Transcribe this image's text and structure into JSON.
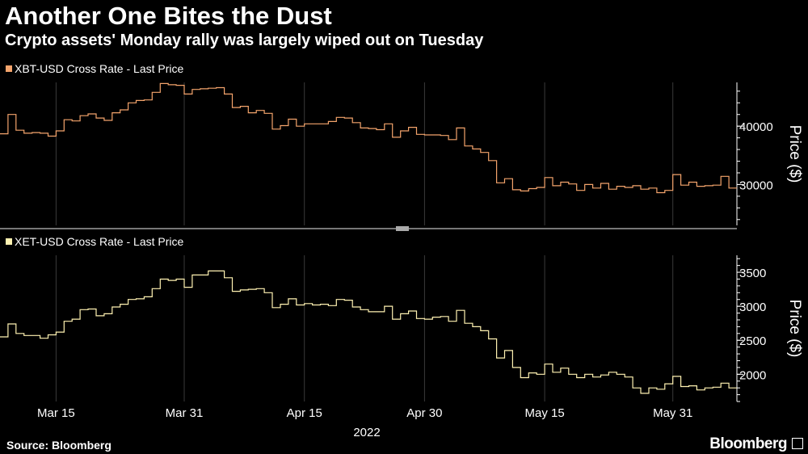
{
  "header": {
    "title": "Another One Bites the Dust",
    "subtitle": "Crypto assets' Monday rally was largely wiped out on Tuesday"
  },
  "footer": {
    "source": "Source: Bloomberg",
    "brand": "Bloomberg"
  },
  "colors": {
    "background": "#000000",
    "btc": "#f4a46c",
    "eth": "#fff2b2",
    "grid": "#3a3a3a",
    "axis": "#ffffff"
  },
  "chart_data": [
    {
      "type": "line",
      "legend_position": "top-left",
      "legend": "XBT-USD Cross Rate - Last Price",
      "ylabel": "Price ($)",
      "ylim": [
        23000,
        47500
      ],
      "yticks": [
        30000,
        40000
      ],
      "xlim": [
        "2022-03-08",
        "2022-06-08"
      ],
      "xticks": [
        {
          "date": "2022-03-15",
          "label": "Mar 15"
        },
        {
          "date": "2022-03-31",
          "label": "Mar 31"
        },
        {
          "date": "2022-04-15",
          "label": "Apr 15"
        },
        {
          "date": "2022-04-30",
          "label": "Apr 30"
        },
        {
          "date": "2022-05-15",
          "label": "May 15"
        },
        {
          "date": "2022-05-31",
          "label": "May 31"
        }
      ],
      "grid": "vertical",
      "series": [
        {
          "x": [
            "2022-03-08",
            "2022-03-09",
            "2022-03-10",
            "2022-03-11",
            "2022-03-12",
            "2022-03-13",
            "2022-03-14",
            "2022-03-15",
            "2022-03-16",
            "2022-03-17",
            "2022-03-18",
            "2022-03-19",
            "2022-03-20",
            "2022-03-21",
            "2022-03-22",
            "2022-03-23",
            "2022-03-24",
            "2022-03-25",
            "2022-03-26",
            "2022-03-27",
            "2022-03-28",
            "2022-03-29",
            "2022-03-30",
            "2022-03-31",
            "2022-04-01",
            "2022-04-02",
            "2022-04-03",
            "2022-04-04",
            "2022-04-05",
            "2022-04-06",
            "2022-04-07",
            "2022-04-08",
            "2022-04-09",
            "2022-04-10",
            "2022-04-11",
            "2022-04-12",
            "2022-04-13",
            "2022-04-14",
            "2022-04-15",
            "2022-04-16",
            "2022-04-17",
            "2022-04-18",
            "2022-04-19",
            "2022-04-20",
            "2022-04-21",
            "2022-04-22",
            "2022-04-23",
            "2022-04-24",
            "2022-04-25",
            "2022-04-26",
            "2022-04-27",
            "2022-04-28",
            "2022-04-29",
            "2022-04-30",
            "2022-05-01",
            "2022-05-02",
            "2022-05-03",
            "2022-05-04",
            "2022-05-05",
            "2022-05-06",
            "2022-05-07",
            "2022-05-08",
            "2022-05-09",
            "2022-05-10",
            "2022-05-11",
            "2022-05-12",
            "2022-05-13",
            "2022-05-14",
            "2022-05-15",
            "2022-05-16",
            "2022-05-17",
            "2022-05-18",
            "2022-05-19",
            "2022-05-20",
            "2022-05-21",
            "2022-05-22",
            "2022-05-23",
            "2022-05-24",
            "2022-05-25",
            "2022-05-26",
            "2022-05-27",
            "2022-05-28",
            "2022-05-29",
            "2022-05-30",
            "2022-05-31",
            "2022-06-01",
            "2022-06-02",
            "2022-06-03",
            "2022-06-04",
            "2022-06-05",
            "2022-06-06",
            "2022-06-07"
          ],
          "y": [
            38700,
            42000,
            39300,
            38800,
            38900,
            38800,
            38300,
            39200,
            41100,
            40900,
            41800,
            42100,
            41400,
            41000,
            42300,
            42800,
            44000,
            44400,
            44500,
            45800,
            47300,
            47100,
            47000,
            45500,
            46300,
            46400,
            46500,
            46600,
            45500,
            43200,
            43400,
            42300,
            42700,
            42200,
            39500,
            40100,
            41200,
            40000,
            40400,
            40400,
            40400,
            40800,
            41500,
            41400,
            40600,
            39700,
            39600,
            39400,
            40400,
            38100,
            39200,
            39800,
            38600,
            38500,
            38500,
            38400,
            37700,
            39700,
            36600,
            36100,
            35500,
            34100,
            30300,
            31000,
            29100,
            28900,
            29300,
            29500,
            31200,
            29800,
            30400,
            30100,
            29000,
            30000,
            29400,
            30200,
            29200,
            29700,
            29500,
            29800,
            29200,
            29400,
            28600,
            29000,
            31700,
            29900,
            30400,
            29700,
            29800,
            29900,
            31400,
            29400
          ]
        }
      ]
    },
    {
      "type": "line",
      "legend_position": "top-left",
      "legend": "XET-USD Cross Rate - Last Price",
      "ylabel": "Price ($)",
      "ylim": [
        1600,
        3750
      ],
      "yticks": [
        2000,
        2500,
        3000,
        3500
      ],
      "xlim": [
        "2022-03-08",
        "2022-06-08"
      ],
      "xticks": [
        {
          "date": "2022-03-15",
          "label": "Mar 15"
        },
        {
          "date": "2022-03-31",
          "label": "Mar 31"
        },
        {
          "date": "2022-04-15",
          "label": "Apr 15"
        },
        {
          "date": "2022-04-30",
          "label": "Apr 30"
        },
        {
          "date": "2022-05-15",
          "label": "May 15"
        },
        {
          "date": "2022-05-31",
          "label": "May 31"
        }
      ],
      "grid": "vertical",
      "series": [
        {
          "x": [
            "2022-03-08",
            "2022-03-09",
            "2022-03-10",
            "2022-03-11",
            "2022-03-12",
            "2022-03-13",
            "2022-03-14",
            "2022-03-15",
            "2022-03-16",
            "2022-03-17",
            "2022-03-18",
            "2022-03-19",
            "2022-03-20",
            "2022-03-21",
            "2022-03-22",
            "2022-03-23",
            "2022-03-24",
            "2022-03-25",
            "2022-03-26",
            "2022-03-27",
            "2022-03-28",
            "2022-03-29",
            "2022-03-30",
            "2022-03-31",
            "2022-04-01",
            "2022-04-02",
            "2022-04-03",
            "2022-04-04",
            "2022-04-05",
            "2022-04-06",
            "2022-04-07",
            "2022-04-08",
            "2022-04-09",
            "2022-04-10",
            "2022-04-11",
            "2022-04-12",
            "2022-04-13",
            "2022-04-14",
            "2022-04-15",
            "2022-04-16",
            "2022-04-17",
            "2022-04-18",
            "2022-04-19",
            "2022-04-20",
            "2022-04-21",
            "2022-04-22",
            "2022-04-23",
            "2022-04-24",
            "2022-04-25",
            "2022-04-26",
            "2022-04-27",
            "2022-04-28",
            "2022-04-29",
            "2022-04-30",
            "2022-05-01",
            "2022-05-02",
            "2022-05-03",
            "2022-05-04",
            "2022-05-05",
            "2022-05-06",
            "2022-05-07",
            "2022-05-08",
            "2022-05-09",
            "2022-05-10",
            "2022-05-11",
            "2022-05-12",
            "2022-05-13",
            "2022-05-14",
            "2022-05-15",
            "2022-05-16",
            "2022-05-17",
            "2022-05-18",
            "2022-05-19",
            "2022-05-20",
            "2022-05-21",
            "2022-05-22",
            "2022-05-23",
            "2022-05-24",
            "2022-05-25",
            "2022-05-26",
            "2022-05-27",
            "2022-05-28",
            "2022-05-29",
            "2022-05-30",
            "2022-05-31",
            "2022-06-01",
            "2022-06-02",
            "2022-06-03",
            "2022-06-04",
            "2022-06-05",
            "2022-06-06",
            "2022-06-07"
          ],
          "y": [
            2550,
            2740,
            2600,
            2570,
            2570,
            2530,
            2580,
            2620,
            2780,
            2810,
            2950,
            2960,
            2860,
            2890,
            2990,
            3030,
            3100,
            3110,
            3140,
            3260,
            3400,
            3380,
            3400,
            3280,
            3460,
            3460,
            3520,
            3520,
            3420,
            3220,
            3240,
            3250,
            3260,
            3200,
            2980,
            3030,
            3110,
            3020,
            3040,
            3020,
            3030,
            3010,
            3100,
            3090,
            2990,
            2950,
            2920,
            2920,
            3000,
            2810,
            2890,
            2930,
            2820,
            2810,
            2840,
            2850,
            2780,
            2940,
            2750,
            2700,
            2640,
            2520,
            2240,
            2350,
            2100,
            1950,
            2020,
            2000,
            2150,
            2030,
            2090,
            2000,
            1950,
            2000,
            1960,
            1990,
            2030,
            2000,
            1960,
            1800,
            1720,
            1800,
            1780,
            1860,
            1970,
            1820,
            1830,
            1770,
            1800,
            1810,
            1870,
            1800
          ]
        }
      ]
    }
  ]
}
